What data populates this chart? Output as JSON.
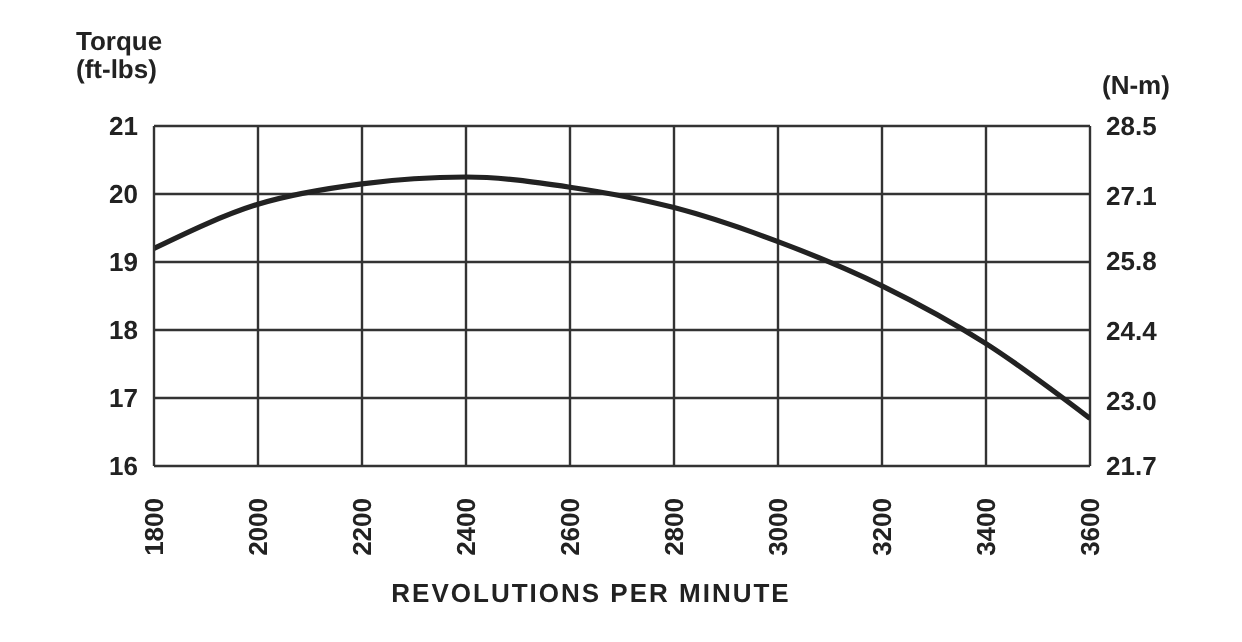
{
  "chart_data": {
    "type": "line",
    "ylabel": "Torque\n(ft-lbs)",
    "y2label": "(N-m)",
    "xlabel": "REVOLUTIONS PER MINUTE",
    "x": [
      1800,
      2000,
      2200,
      2400,
      2600,
      2800,
      3000,
      3200,
      3400,
      3600
    ],
    "series": [
      {
        "color": "#222222",
        "values": [
          19.2,
          19.85,
          20.15,
          20.25,
          20.1,
          19.8,
          19.3,
          18.65,
          17.8,
          16.7
        ]
      }
    ],
    "xlim": [
      1800,
      3600
    ],
    "xticks": [
      1800,
      2000,
      2200,
      2400,
      2600,
      2800,
      3000,
      3200,
      3400,
      3600
    ],
    "ylim": [
      16,
      21
    ],
    "yticks": [
      16,
      17,
      18,
      19,
      20,
      21
    ],
    "y2lim": [
      21.7,
      28.5
    ],
    "y2ticks": [
      21.7,
      {
        "value": 23,
        "label": "23.0"
      },
      24.4,
      25.8,
      27.1,
      28.5
    ],
    "grid": true,
    "marker": "none"
  }
}
